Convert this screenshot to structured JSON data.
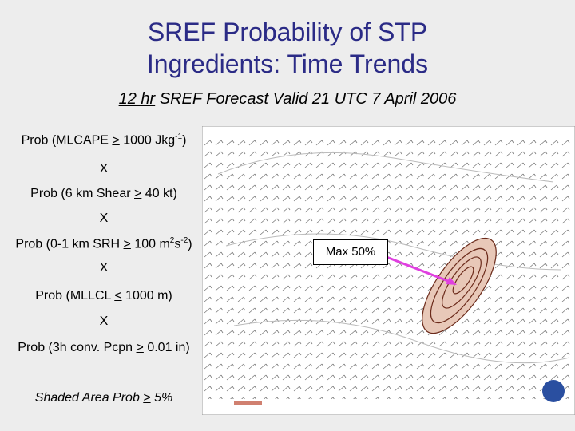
{
  "title": {
    "lines": [
      "SREF Probability of STP",
      "Ingredients: Time Trends"
    ]
  },
  "subtitle": {
    "lead": "12 hr",
    "rest": " SREF Forecast Valid 21 UTC 7 April 2006"
  },
  "ingredients": [
    {
      "parts": [
        "Prob (MLCAPE ",
        ">",
        " 1000 Jkg",
        "-1",
        ")"
      ]
    },
    {
      "parts": [
        "X"
      ]
    },
    {
      "parts": [
        "Prob (6 km Shear ",
        ">",
        " 40 kt)"
      ]
    },
    {
      "parts": [
        "X"
      ]
    },
    {
      "parts": [
        "Prob (0-1 km SRH ",
        ">",
        " 100 m",
        "2",
        "s",
        "-2",
        ")"
      ]
    },
    {
      "parts": [
        "X"
      ]
    },
    {
      "parts": [
        "Prob (MLLCL ",
        "<",
        " 1000 m)"
      ]
    },
    {
      "parts": [
        "X"
      ]
    },
    {
      "parts": [
        "Prob (3h conv. Pcpn ",
        ">",
        " 0.01 in)"
      ]
    }
  ],
  "note": {
    "parts": [
      "Shaded Area Prob ",
      ">",
      " 5%"
    ]
  },
  "callout": "Max 50%"
}
